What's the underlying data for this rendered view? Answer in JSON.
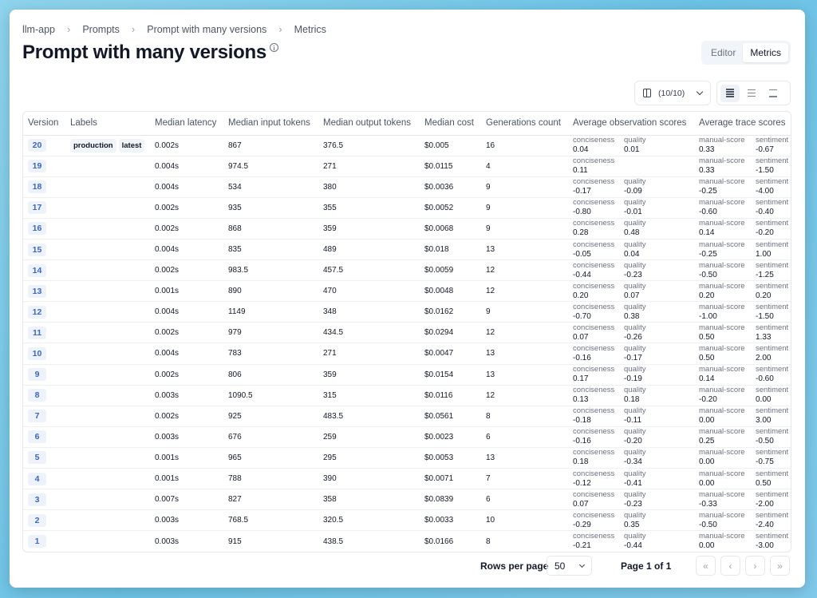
{
  "breadcrumb": [
    "llm-app",
    "Prompts",
    "Prompt with many versions",
    "Metrics"
  ],
  "page_title": "Prompt with many versions",
  "tabs": [
    {
      "label": "Editor",
      "active": false
    },
    {
      "label": "Metrics",
      "active": true
    }
  ],
  "columns_button": {
    "label": "(10/10)",
    "icon": "columns-icon"
  },
  "density_buttons": [
    "density-compact-icon",
    "density-normal-icon",
    "density-spacious-icon"
  ],
  "table": {
    "headers": [
      "Version",
      "Labels",
      "Median latency",
      "Median input tokens",
      "Median output tokens",
      "Median cost",
      "Generations count",
      "Average observation scores",
      "Average trace scores"
    ],
    "rows": [
      {
        "version": "20",
        "labels": [
          "production",
          "latest"
        ],
        "latency": "0.002s",
        "input": "867",
        "output": "376.5",
        "cost": "$0.005",
        "count": "16",
        "obs": [
          {
            "name": "conciseness",
            "value": "0.04"
          },
          {
            "name": "quality",
            "value": "0.01"
          }
        ],
        "trace": [
          {
            "name": "manual-score",
            "value": "0.33"
          },
          {
            "name": "sentiment",
            "value": "-0.67"
          }
        ]
      },
      {
        "version": "19",
        "labels": [],
        "latency": "0.004s",
        "input": "974.5",
        "output": "271",
        "cost": "$0.0115",
        "count": "4",
        "obs": [
          {
            "name": "conciseness",
            "value": "0.11"
          }
        ],
        "trace": [
          {
            "name": "manual-score",
            "value": "0.33"
          },
          {
            "name": "sentiment",
            "value": "-1.50"
          }
        ]
      },
      {
        "version": "18",
        "labels": [],
        "latency": "0.004s",
        "input": "534",
        "output": "380",
        "cost": "$0.0036",
        "count": "9",
        "obs": [
          {
            "name": "conciseness",
            "value": "-0.17"
          },
          {
            "name": "quality",
            "value": "-0.09"
          }
        ],
        "trace": [
          {
            "name": "manual-score",
            "value": "-0.25"
          },
          {
            "name": "sentiment",
            "value": "-4.00"
          }
        ]
      },
      {
        "version": "17",
        "labels": [],
        "latency": "0.002s",
        "input": "935",
        "output": "355",
        "cost": "$0.0052",
        "count": "9",
        "obs": [
          {
            "name": "conciseness",
            "value": "-0.80"
          },
          {
            "name": "quality",
            "value": "-0.01"
          }
        ],
        "trace": [
          {
            "name": "manual-score",
            "value": "-0.60"
          },
          {
            "name": "sentiment",
            "value": "-0.40"
          }
        ]
      },
      {
        "version": "16",
        "labels": [],
        "latency": "0.002s",
        "input": "868",
        "output": "359",
        "cost": "$0.0068",
        "count": "9",
        "obs": [
          {
            "name": "conciseness",
            "value": "0.28"
          },
          {
            "name": "quality",
            "value": "0.48"
          }
        ],
        "trace": [
          {
            "name": "manual-score",
            "value": "0.14"
          },
          {
            "name": "sentiment",
            "value": "-0.20"
          }
        ]
      },
      {
        "version": "15",
        "labels": [],
        "latency": "0.004s",
        "input": "835",
        "output": "489",
        "cost": "$0.018",
        "count": "13",
        "obs": [
          {
            "name": "conciseness",
            "value": "-0.05"
          },
          {
            "name": "quality",
            "value": "0.04"
          }
        ],
        "trace": [
          {
            "name": "manual-score",
            "value": "-0.25"
          },
          {
            "name": "sentiment",
            "value": "1.00"
          }
        ]
      },
      {
        "version": "14",
        "labels": [],
        "latency": "0.002s",
        "input": "983.5",
        "output": "457.5",
        "cost": "$0.0059",
        "count": "12",
        "obs": [
          {
            "name": "conciseness",
            "value": "-0.44"
          },
          {
            "name": "quality",
            "value": "-0.23"
          }
        ],
        "trace": [
          {
            "name": "manual-score",
            "value": "-0.50"
          },
          {
            "name": "sentiment",
            "value": "-1.25"
          }
        ]
      },
      {
        "version": "13",
        "labels": [],
        "latency": "0.001s",
        "input": "890",
        "output": "470",
        "cost": "$0.0048",
        "count": "12",
        "obs": [
          {
            "name": "conciseness",
            "value": "0.20"
          },
          {
            "name": "quality",
            "value": "0.07"
          }
        ],
        "trace": [
          {
            "name": "manual-score",
            "value": "0.20"
          },
          {
            "name": "sentiment",
            "value": "0.20"
          }
        ]
      },
      {
        "version": "12",
        "labels": [],
        "latency": "0.004s",
        "input": "1149",
        "output": "348",
        "cost": "$0.0162",
        "count": "9",
        "obs": [
          {
            "name": "conciseness",
            "value": "-0.70"
          },
          {
            "name": "quality",
            "value": "0.38"
          }
        ],
        "trace": [
          {
            "name": "manual-score",
            "value": "-1.00"
          },
          {
            "name": "sentiment",
            "value": "-1.50"
          }
        ]
      },
      {
        "version": "11",
        "labels": [],
        "latency": "0.002s",
        "input": "979",
        "output": "434.5",
        "cost": "$0.0294",
        "count": "12",
        "obs": [
          {
            "name": "conciseness",
            "value": "0.07"
          },
          {
            "name": "quality",
            "value": "-0.26"
          }
        ],
        "trace": [
          {
            "name": "manual-score",
            "value": "0.50"
          },
          {
            "name": "sentiment",
            "value": "1.33"
          }
        ]
      },
      {
        "version": "10",
        "labels": [],
        "latency": "0.004s",
        "input": "783",
        "output": "271",
        "cost": "$0.0047",
        "count": "13",
        "obs": [
          {
            "name": "conciseness",
            "value": "-0.16"
          },
          {
            "name": "quality",
            "value": "-0.17"
          }
        ],
        "trace": [
          {
            "name": "manual-score",
            "value": "0.50"
          },
          {
            "name": "sentiment",
            "value": "2.00"
          }
        ]
      },
      {
        "version": "9",
        "labels": [],
        "latency": "0.002s",
        "input": "806",
        "output": "359",
        "cost": "$0.0154",
        "count": "13",
        "obs": [
          {
            "name": "conciseness",
            "value": "0.17"
          },
          {
            "name": "quality",
            "value": "-0.19"
          }
        ],
        "trace": [
          {
            "name": "manual-score",
            "value": "0.14"
          },
          {
            "name": "sentiment",
            "value": "-0.60"
          }
        ]
      },
      {
        "version": "8",
        "labels": [],
        "latency": "0.003s",
        "input": "1090.5",
        "output": "315",
        "cost": "$0.0116",
        "count": "12",
        "obs": [
          {
            "name": "conciseness",
            "value": "0.13"
          },
          {
            "name": "quality",
            "value": "0.18"
          }
        ],
        "trace": [
          {
            "name": "manual-score",
            "value": "-0.20"
          },
          {
            "name": "sentiment",
            "value": "0.00"
          }
        ]
      },
      {
        "version": "7",
        "labels": [],
        "latency": "0.002s",
        "input": "925",
        "output": "483.5",
        "cost": "$0.0561",
        "count": "8",
        "obs": [
          {
            "name": "conciseness",
            "value": "-0.18"
          },
          {
            "name": "quality",
            "value": "-0.11"
          }
        ],
        "trace": [
          {
            "name": "manual-score",
            "value": "0.00"
          },
          {
            "name": "sentiment",
            "value": "3.00"
          }
        ]
      },
      {
        "version": "6",
        "labels": [],
        "latency": "0.003s",
        "input": "676",
        "output": "259",
        "cost": "$0.0023",
        "count": "6",
        "obs": [
          {
            "name": "conciseness",
            "value": "-0.16"
          },
          {
            "name": "quality",
            "value": "-0.20"
          }
        ],
        "trace": [
          {
            "name": "manual-score",
            "value": "0.25"
          },
          {
            "name": "sentiment",
            "value": "-0.50"
          }
        ]
      },
      {
        "version": "5",
        "labels": [],
        "latency": "0.001s",
        "input": "965",
        "output": "295",
        "cost": "$0.0053",
        "count": "13",
        "obs": [
          {
            "name": "conciseness",
            "value": "0.18"
          },
          {
            "name": "quality",
            "value": "-0.34"
          }
        ],
        "trace": [
          {
            "name": "manual-score",
            "value": "0.00"
          },
          {
            "name": "sentiment",
            "value": "-0.75"
          }
        ]
      },
      {
        "version": "4",
        "labels": [],
        "latency": "0.001s",
        "input": "788",
        "output": "390",
        "cost": "$0.0071",
        "count": "7",
        "obs": [
          {
            "name": "conciseness",
            "value": "-0.12"
          },
          {
            "name": "quality",
            "value": "-0.41"
          }
        ],
        "trace": [
          {
            "name": "manual-score",
            "value": "0.00"
          },
          {
            "name": "sentiment",
            "value": "0.50"
          }
        ]
      },
      {
        "version": "3",
        "labels": [],
        "latency": "0.007s",
        "input": "827",
        "output": "358",
        "cost": "$0.0839",
        "count": "6",
        "obs": [
          {
            "name": "conciseness",
            "value": "0.07"
          },
          {
            "name": "quality",
            "value": "-0.23"
          }
        ],
        "trace": [
          {
            "name": "manual-score",
            "value": "-0.33"
          },
          {
            "name": "sentiment",
            "value": "-2.00"
          }
        ]
      },
      {
        "version": "2",
        "labels": [],
        "latency": "0.003s",
        "input": "768.5",
        "output": "320.5",
        "cost": "$0.0033",
        "count": "10",
        "obs": [
          {
            "name": "conciseness",
            "value": "-0.29"
          },
          {
            "name": "quality",
            "value": "0.35"
          }
        ],
        "trace": [
          {
            "name": "manual-score",
            "value": "-0.50"
          },
          {
            "name": "sentiment",
            "value": "-2.40"
          }
        ]
      },
      {
        "version": "1",
        "labels": [],
        "latency": "0.003s",
        "input": "915",
        "output": "438.5",
        "cost": "$0.0166",
        "count": "8",
        "obs": [
          {
            "name": "conciseness",
            "value": "-0.21"
          },
          {
            "name": "quality",
            "value": "-0.44"
          }
        ],
        "trace": [
          {
            "name": "manual-score",
            "value": "0.00"
          },
          {
            "name": "sentiment",
            "value": "-3.00"
          }
        ]
      }
    ]
  },
  "pagination": {
    "rows_per_page_label": "Rows per page",
    "rows_per_page_value": "50",
    "page_info": "Page 1 of 1",
    "buttons": [
      {
        "name": "first-page-button",
        "glyph": "«"
      },
      {
        "name": "prev-page-button",
        "glyph": "‹"
      },
      {
        "name": "next-page-button",
        "glyph": "›"
      },
      {
        "name": "last-page-button",
        "glyph": "»"
      }
    ]
  }
}
